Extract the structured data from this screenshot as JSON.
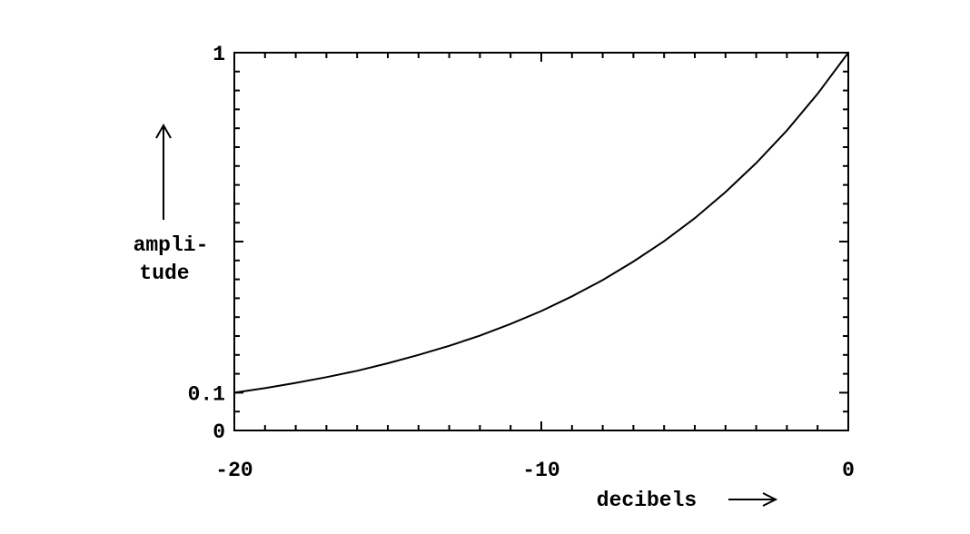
{
  "chart_data": {
    "type": "line",
    "title": "",
    "xlabel": "decibels",
    "ylabel_lines": [
      "ampli-",
      "tude"
    ],
    "xlim": [
      -20,
      0
    ],
    "ylim": [
      0,
      1
    ],
    "x_tick_labels": [
      {
        "value": -20,
        "label": "-20"
      },
      {
        "value": -10,
        "label": "-10"
      },
      {
        "value": 0,
        "label": "0"
      }
    ],
    "y_tick_labels": [
      {
        "value": 0,
        "label": "0"
      },
      {
        "value": 0.1,
        "label": "0.1"
      },
      {
        "value": 1,
        "label": "1"
      }
    ],
    "y_major_ticks": [
      0.5
    ],
    "x_minor_step": 1,
    "y_minor_step": 0.05,
    "grid": false,
    "series": [
      {
        "x": [
          -20,
          -19,
          -18,
          -17,
          -16,
          -15,
          -14,
          -13,
          -12,
          -11,
          -10,
          -9,
          -8,
          -7,
          -6,
          -5,
          -4,
          -3,
          -2,
          -1,
          0
        ],
        "y": [
          0.1,
          0.112,
          0.126,
          0.141,
          0.158,
          0.178,
          0.2,
          0.224,
          0.251,
          0.282,
          0.316,
          0.355,
          0.398,
          0.447,
          0.501,
          0.562,
          0.631,
          0.708,
          0.794,
          0.891,
          1.0
        ]
      }
    ]
  }
}
